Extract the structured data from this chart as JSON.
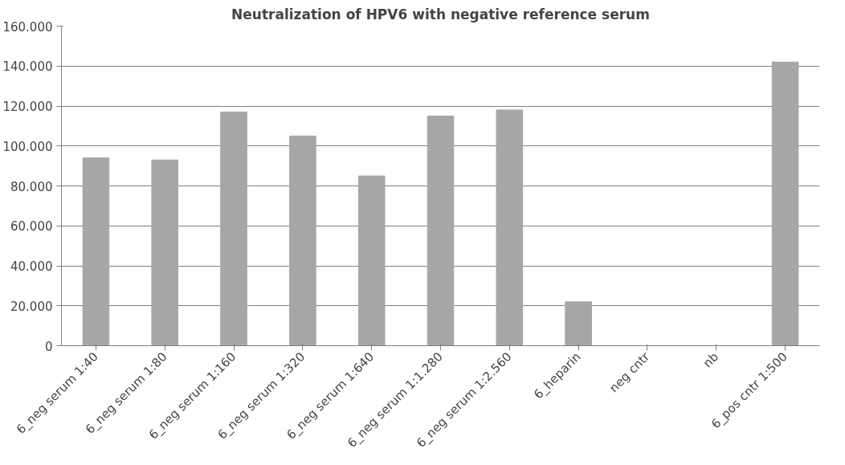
{
  "chart_data": {
    "type": "bar",
    "title": "Neutralization of HPV6 with negative reference serum",
    "categories": [
      "6_neg serum 1:40",
      "6_neg serum 1:80",
      "6_neg serum 1:160",
      "6_neg serum 1:320",
      "6_neg serum 1:640",
      "6_neg serum 1:1.280",
      "6_neg serum 1:2.560",
      "6_heparin",
      "neg cntr",
      "nb",
      "6_pos cntr 1:500"
    ],
    "values": [
      94000,
      93000,
      117000,
      105000,
      85000,
      115000,
      118000,
      22000,
      0,
      0,
      142000
    ],
    "color": "#a6a6a6",
    "ylim": [
      0,
      160000
    ],
    "yticks": [
      {
        "value": 0,
        "label": "0"
      },
      {
        "value": 20000,
        "label": "20.000"
      },
      {
        "value": 40000,
        "label": "40.000"
      },
      {
        "value": 60000,
        "label": "60.000"
      },
      {
        "value": 80000,
        "label": "80.000"
      },
      {
        "value": 100000,
        "label": "100.000"
      },
      {
        "value": 120000,
        "label": "120.000"
      },
      {
        "value": 140000,
        "label": "140.000"
      },
      {
        "value": 160000,
        "label": "160.000"
      }
    ],
    "grid": "y"
  }
}
